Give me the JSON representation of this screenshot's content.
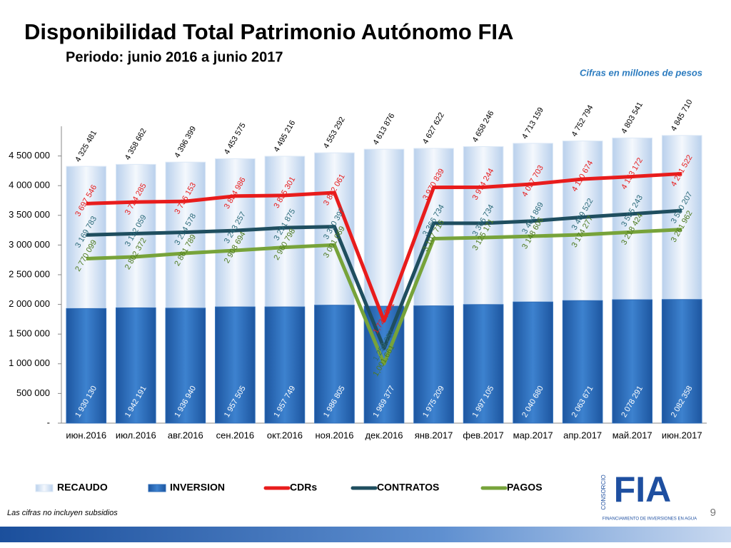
{
  "header": {
    "title": "Disponibilidad Total Patrimonio Autónomo FIA",
    "subtitle": "Periodo: junio 2016 a junio 2017",
    "note": "Cifras en millones de pesos"
  },
  "footer": {
    "note": "Las cifras no incluyen subsidios",
    "page": "9",
    "logo": {
      "text": "FIA",
      "top": "CONSORCIO",
      "bottom": "FINANCIAMIENTO DE INVERSIONES EN AGUA"
    }
  },
  "chart_data": {
    "type": "bar-line",
    "categories": [
      "июн.2016",
      "июл.2016",
      "авг.2016",
      "сен.2016",
      "окт.2016",
      "ноя.2016",
      "дек.2016",
      "янв.2017",
      "фев.2017",
      "мар.2017",
      "апр.2017",
      "май.2017",
      "июн.2017"
    ],
    "ylim": [
      0,
      5000000
    ],
    "yticks": [
      {
        "value": 0,
        "label": "-"
      },
      {
        "value": 500000,
        "label": "500 000"
      },
      {
        "value": 1000000,
        "label": "1 000 000"
      },
      {
        "value": 1500000,
        "label": "1 500 000"
      },
      {
        "value": 2000000,
        "label": "2 000 000"
      },
      {
        "value": 2500000,
        "label": "2 500 000"
      },
      {
        "value": 3000000,
        "label": "3 000 000"
      },
      {
        "value": 3500000,
        "label": "3 500 000"
      },
      {
        "value": 4000000,
        "label": "4 000 000"
      },
      {
        "value": 4500000,
        "label": "4 500 000"
      }
    ],
    "legend": "bottom",
    "series": [
      {
        "name": "RECAUDO",
        "kind": "bar",
        "color": "#dce8f6",
        "label_color": "#000000",
        "values": [
          4325481,
          4358662,
          4396399,
          4453575,
          4495216,
          4553292,
          4613876,
          4627622,
          4658246,
          4713159,
          4752794,
          4803541,
          4845710
        ],
        "value_labels": [
          "4 325 481",
          "4 358 662",
          "4 396 399",
          "4 453 575",
          "4 495 216",
          "4 553 292",
          "4 613 876",
          "4 627 622",
          "4 658 246",
          "4 713 159",
          "4 752 794",
          "4 803 541",
          "4 845 710"
        ]
      },
      {
        "name": "INVERSION",
        "kind": "bar",
        "color": "#2f6db8",
        "label_color": "#ffffff",
        "values": [
          1930130,
          1942191,
          1936940,
          1957505,
          1957749,
          1986805,
          1969377,
          1975209,
          1997105,
          2040680,
          2063671,
          2078291,
          2082358
        ],
        "value_labels": [
          "1 930 130",
          "1 942 191",
          "1 936 940",
          "1 957 505",
          "1 957 749",
          "1 986 805",
          "1 969 377",
          "1 975 209",
          "1 997 105",
          "2 040 680",
          "2 063 671",
          "2 078 291",
          "2 082 358"
        ]
      },
      {
        "name": "CDRs",
        "kind": "line",
        "color": "#e81c1c",
        "label_color": "#e81c1c",
        "values": [
          3697546,
          3724285,
          3736153,
          3824986,
          3835301,
          3882061,
          1721201,
          3970839,
          3974244,
          4027703,
          4110674,
          4153172,
          4201522
        ],
        "value_labels": [
          "3 697 546",
          "3 724 285",
          "3 736 153",
          "3 824 986",
          "3 835 301",
          "3 882 061",
          "1,721,201",
          "3 970 839",
          "3 974 244",
          "4 027 703",
          "4 110 674",
          "4 153 172",
          "4 201 522"
        ]
      },
      {
        "name": "CONTRATOS",
        "kind": "line",
        "color": "#1f4e5f",
        "label_color": "#2b6a7a",
        "values": [
          3169783,
          3192059,
          3214578,
          3243257,
          3291875,
          3310397,
          1259257,
          3366734,
          3366734,
          3404869,
          3469522,
          3525243,
          3580207
        ],
        "value_labels": [
          "3 169 783",
          "3 192 059",
          "3 214 578",
          "3 243 257",
          "3 291 875",
          "3 310 397",
          "1,259,257",
          "3 366 734",
          "3 366 734",
          "3 404 869",
          "3 469 522",
          "3 525 243",
          "3 580 207"
        ]
      },
      {
        "name": "PAGOS",
        "kind": "line",
        "color": "#77a33a",
        "label_color": "#4d7a1e",
        "values": [
          2770099,
          2802372,
          2861789,
          2908694,
          2960798,
          3001069,
          1001661,
          3107716,
          3125171,
          3148606,
          3174277,
          3218424,
          3261962
        ],
        "value_labels": [
          "2 770 099",
          "2 802 372",
          "2 861 789",
          "2 908 694",
          "2 960 798",
          "3 001 069",
          "1,001,661",
          "3 107 716",
          "3 125 171",
          "3 148 606",
          "3 174 277",
          "3 218 424",
          "3 261 962"
        ]
      }
    ]
  }
}
